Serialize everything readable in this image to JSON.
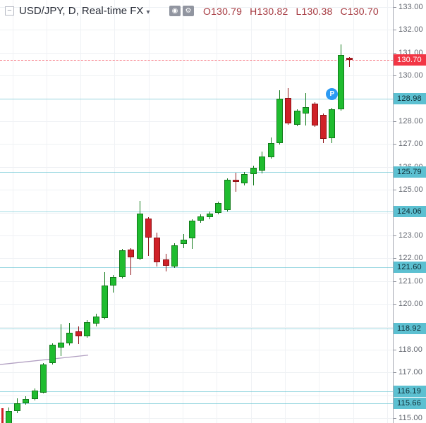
{
  "header": {
    "symbol_title": "USD/JPY, D, Real-time FX",
    "icons": {
      "collapse": "−",
      "caret": "▾",
      "eye": "◉",
      "gear": "⚙"
    },
    "ohlc": {
      "o_label": "O",
      "o": "130.79",
      "h_label": "H",
      "h": "130.82",
      "l_label": "L",
      "l": "130.38",
      "c_label": "C",
      "c": "130.70"
    }
  },
  "colors": {
    "up_fill": "#1fbc2f",
    "up_stroke": "#127a1a",
    "down_fill": "#cf2128",
    "down_stroke": "#8f1318",
    "level_line": "#52bccc",
    "badge_bg": "#5cc0d1",
    "badge_text": "#0e2b33",
    "last_badge_bg": "#f23645",
    "last_badge_text": "#ffffff",
    "axis_text": "#62666f",
    "trend_line": "#b2a0c2",
    "marker_bg": "#2b9af3"
  },
  "chart_data": {
    "type": "candlestick",
    "symbol": "USD/JPY",
    "interval": "D",
    "feed": "Real-time FX",
    "ohlc_readout": {
      "open": 130.79,
      "high": 130.82,
      "low": 130.38,
      "close": 130.7
    },
    "ylim": [
      114.79,
      133.31
    ],
    "grid": true,
    "legend_position": "top-left",
    "axis_labels": [
      "133.00",
      "132.00",
      "131.00",
      "130.00",
      "128.00",
      "127.00",
      "126.00",
      "125.00",
      "123.00",
      "122.00",
      "121.00",
      "120.00",
      "118.00",
      "117.00",
      "115.00"
    ],
    "price_levels": [
      128.98,
      125.79,
      124.06,
      121.6,
      118.92,
      116.19,
      115.66
    ],
    "last_price_line": 130.7,
    "axis_badges": [
      {
        "label": "130.70",
        "price": 130.7,
        "kind": "last"
      },
      {
        "label": "128.98",
        "price": 128.98,
        "kind": "level"
      },
      {
        "label": "125.79",
        "price": 125.79,
        "kind": "level"
      },
      {
        "label": "124.06",
        "price": 124.06,
        "kind": "level"
      },
      {
        "label": "121.60",
        "price": 121.6,
        "kind": "level"
      },
      {
        "label": "118.92",
        "price": 118.92,
        "kind": "level"
      },
      {
        "label": "116.19",
        "price": 116.19,
        "kind": "level"
      },
      {
        "label": "115.66",
        "price": 115.66,
        "kind": "level"
      }
    ],
    "marker": {
      "label": "P",
      "candle_index": 37,
      "price": 129.2
    },
    "trend_line": {
      "x1": 0,
      "price1": 117.35,
      "x2": 125,
      "price2": 117.76
    },
    "clipped_left_candle": {
      "top_price": 115.44,
      "direction": "down"
    },
    "candles": [
      [
        114.75,
        115.47,
        114.72,
        115.31
      ],
      [
        115.31,
        115.87,
        115.22,
        115.65
      ],
      [
        115.65,
        115.96,
        115.59,
        115.84
      ],
      [
        115.83,
        116.29,
        115.77,
        116.2
      ],
      [
        116.12,
        117.41,
        116.09,
        117.35
      ],
      [
        117.41,
        118.28,
        117.35,
        118.22
      ],
      [
        118.09,
        119.1,
        117.72,
        118.31
      ],
      [
        118.28,
        119.17,
        118.19,
        118.74
      ],
      [
        118.8,
        119.02,
        118.25,
        118.59
      ],
      [
        118.59,
        119.3,
        118.52,
        119.21
      ],
      [
        119.14,
        119.57,
        119.02,
        119.45
      ],
      [
        119.39,
        121.4,
        119.33,
        120.81
      ],
      [
        120.81,
        121.26,
        120.5,
        121.17
      ],
      [
        121.17,
        122.41,
        121.11,
        122.35
      ],
      [
        122.38,
        122.44,
        121.27,
        122.04
      ],
      [
        121.98,
        124.52,
        121.92,
        123.96
      ],
      [
        123.74,
        123.8,
        122.1,
        122.91
      ],
      [
        122.91,
        123.12,
        121.64,
        121.83
      ],
      [
        121.95,
        122.2,
        121.42,
        121.67
      ],
      [
        121.64,
        122.66,
        121.58,
        122.57
      ],
      [
        122.62,
        123.06,
        122.44,
        122.81
      ],
      [
        122.88,
        123.71,
        122.41,
        123.65
      ],
      [
        123.65,
        123.93,
        123.56,
        123.83
      ],
      [
        123.8,
        124.05,
        123.71,
        123.96
      ],
      [
        123.99,
        124.48,
        123.93,
        124.42
      ],
      [
        124.11,
        125.5,
        124.05,
        125.44
      ],
      [
        125.44,
        125.75,
        124.91,
        125.35
      ],
      [
        125.28,
        125.78,
        125.19,
        125.69
      ],
      [
        125.69,
        126.05,
        125.19,
        125.96
      ],
      [
        125.84,
        126.68,
        125.72,
        126.46
      ],
      [
        126.43,
        127.28,
        126.37,
        127.04
      ],
      [
        127.04,
        129.36,
        126.98,
        128.99
      ],
      [
        129.02,
        129.45,
        127.85,
        127.91
      ],
      [
        127.85,
        128.52,
        127.78,
        128.46
      ],
      [
        128.34,
        129.23,
        127.81,
        128.62
      ],
      [
        128.77,
        128.83,
        127.75,
        127.81
      ],
      [
        128.28,
        128.34,
        127.04,
        127.23
      ],
      [
        127.26,
        128.58,
        127.04,
        128.52
      ],
      [
        128.52,
        131.36,
        128.46,
        130.9
      ],
      [
        130.79,
        130.82,
        130.38,
        130.7
      ]
    ]
  }
}
